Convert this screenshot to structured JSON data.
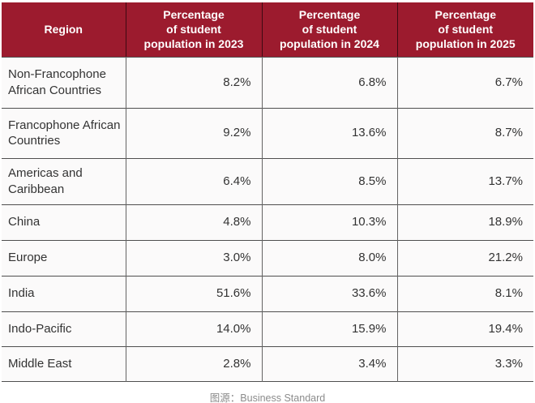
{
  "table": {
    "header": {
      "region": "Region",
      "y2023": "Percentage\nof student\npopulation in 2023",
      "y2024": "Percentage\nof student\npopulation in 2024",
      "y2025": "Percentage\nof student\npopulation in 2025"
    },
    "rows": [
      {
        "region": "Non-Francophone African Countries",
        "v2023": "8.2%",
        "v2024": "6.8%",
        "v2025": "6.7%"
      },
      {
        "region": "Francophone African Countries",
        "v2023": "9.2%",
        "v2024": "13.6%",
        "v2025": "8.7%"
      },
      {
        "region": "Americas and Caribbean",
        "v2023": "6.4%",
        "v2024": "8.5%",
        "v2025": "13.7%"
      },
      {
        "region": "China",
        "v2023": "4.8%",
        "v2024": "10.3%",
        "v2025": "18.9%"
      },
      {
        "region": "Europe",
        "v2023": "3.0%",
        "v2024": "8.0%",
        "v2025": "21.2%"
      },
      {
        "region": "India",
        "v2023": "51.6%",
        "v2024": "33.6%",
        "v2025": "8.1%"
      },
      {
        "region": "Indo-Pacific",
        "v2023": "14.0%",
        "v2024": "15.9%",
        "v2025": "19.4%"
      },
      {
        "region": "Middle East",
        "v2023": "2.8%",
        "v2024": "3.4%",
        "v2025": "3.3%"
      }
    ]
  },
  "footer": {
    "caption": "图源：Business Standard"
  },
  "colors": {
    "header_bg": "#9C1B2E",
    "header_text": "#FFFFFF",
    "body_text": "#333333",
    "grid_line": "#4F4F4F",
    "cell_bg": "#FBFAFA",
    "caption_text": "#8C8C8C"
  },
  "chart_data": {
    "type": "table",
    "title": "Percentage of student population by region, 2023-2025",
    "columns": [
      "Region",
      "Percentage of student population in 2023",
      "Percentage of student population in 2024",
      "Percentage of student population in 2025"
    ],
    "unit": "%",
    "rows": [
      [
        "Non-Francophone African Countries",
        8.2,
        6.8,
        6.7
      ],
      [
        "Francophone African Countries",
        9.2,
        13.6,
        8.7
      ],
      [
        "Americas and Caribbean",
        6.4,
        8.5,
        13.7
      ],
      [
        "China",
        4.8,
        10.3,
        18.9
      ],
      [
        "Europe",
        3.0,
        8.0,
        21.2
      ],
      [
        "India",
        51.6,
        33.6,
        8.1
      ],
      [
        "Indo-Pacific",
        14.0,
        15.9,
        19.4
      ],
      [
        "Middle East",
        2.8,
        3.4,
        3.3
      ]
    ],
    "source": "Business Standard"
  }
}
